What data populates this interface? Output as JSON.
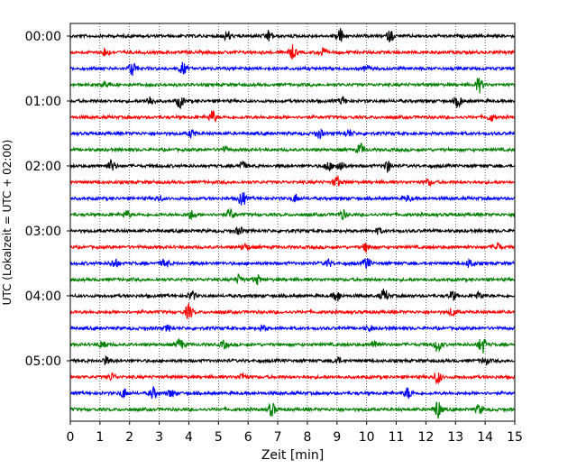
{
  "chart_data": {
    "type": "line",
    "title": "",
    "xlabel": "Zeit  [min]",
    "ylabel": "UTC (Lokalzeit = UTC + 02:00)",
    "xlim": [
      0,
      15
    ],
    "x_ticks": [
      0,
      1,
      2,
      3,
      4,
      5,
      6,
      7,
      8,
      9,
      10,
      11,
      12,
      13,
      14,
      15
    ],
    "x_tick_labels": [
      "0",
      "1",
      "2",
      "3",
      "4",
      "5",
      "6",
      "7",
      "8",
      "9",
      "10",
      "11",
      "12",
      "13",
      "14",
      "15"
    ],
    "y_tick_labels": [
      {
        "trace": 0,
        "label": "00:00"
      },
      {
        "trace": 4,
        "label": "01:00"
      },
      {
        "trace": 8,
        "label": "02:00"
      },
      {
        "trace": 12,
        "label": "03:00"
      },
      {
        "trace": 16,
        "label": "04:00"
      },
      {
        "trace": 20,
        "label": "05:00"
      }
    ],
    "grid": "vertical dotted",
    "trace_colors": [
      "#000000",
      "#ff0000",
      "#0000ff",
      "#008000"
    ],
    "traces": [
      {
        "start": "00:00",
        "events": [
          [
            5.3,
            0.5
          ],
          [
            6.7,
            0.6
          ],
          [
            9.1,
            0.8
          ],
          [
            10.8,
            0.6
          ]
        ]
      },
      {
        "start": "00:15",
        "events": [
          [
            1.2,
            0.5
          ],
          [
            7.5,
            0.7
          ],
          [
            8.5,
            0.5
          ]
        ]
      },
      {
        "start": "00:30",
        "events": [
          [
            2.1,
            0.8
          ],
          [
            3.8,
            0.6
          ],
          [
            10.0,
            0.3
          ]
        ]
      },
      {
        "start": "00:45",
        "events": [
          [
            1.2,
            0.3
          ],
          [
            13.8,
            0.8
          ]
        ]
      },
      {
        "start": "01:00",
        "events": [
          [
            2.7,
            0.5
          ],
          [
            3.7,
            0.7
          ],
          [
            9.2,
            0.4
          ],
          [
            13.1,
            0.6
          ]
        ]
      },
      {
        "start": "01:15",
        "events": [
          [
            4.8,
            0.7
          ],
          [
            14.2,
            0.4
          ]
        ]
      },
      {
        "start": "01:30",
        "events": [
          [
            4.1,
            0.4
          ],
          [
            8.4,
            0.5
          ],
          [
            9.4,
            0.4
          ]
        ]
      },
      {
        "start": "01:45",
        "events": [
          [
            5.2,
            0.3
          ],
          [
            9.8,
            0.6
          ]
        ]
      },
      {
        "start": "02:00",
        "events": [
          [
            1.4,
            0.6
          ],
          [
            5.8,
            0.5
          ],
          [
            8.7,
            0.5
          ],
          [
            9.1,
            0.7
          ],
          [
            10.7,
            0.6
          ]
        ]
      },
      {
        "start": "02:15",
        "events": [
          [
            9.0,
            0.6
          ],
          [
            12.1,
            0.3
          ]
        ]
      },
      {
        "start": "02:30",
        "events": [
          [
            3.0,
            0.3
          ],
          [
            5.8,
            0.8
          ],
          [
            7.6,
            0.4
          ],
          [
            11.4,
            0.3
          ]
        ]
      },
      {
        "start": "02:45",
        "events": [
          [
            1.9,
            0.4
          ],
          [
            4.1,
            0.5
          ],
          [
            5.4,
            0.6
          ],
          [
            9.2,
            0.5
          ]
        ]
      },
      {
        "start": "03:00",
        "events": [
          [
            5.7,
            0.4
          ],
          [
            10.4,
            0.3
          ]
        ]
      },
      {
        "start": "03:15",
        "events": [
          [
            5.9,
            0.4
          ],
          [
            10.0,
            0.5
          ],
          [
            14.4,
            0.5
          ]
        ]
      },
      {
        "start": "03:30",
        "events": [
          [
            1.5,
            0.5
          ],
          [
            3.2,
            0.5
          ],
          [
            8.7,
            0.4
          ],
          [
            10.0,
            0.6
          ],
          [
            13.5,
            0.5
          ]
        ]
      },
      {
        "start": "03:45",
        "events": [
          [
            5.7,
            0.5
          ],
          [
            6.3,
            0.5
          ]
        ]
      },
      {
        "start": "04:00",
        "events": [
          [
            4.1,
            0.5
          ],
          [
            9.0,
            0.6
          ],
          [
            10.6,
            0.7
          ],
          [
            12.9,
            0.5
          ],
          [
            13.8,
            0.4
          ]
        ]
      },
      {
        "start": "04:15",
        "events": [
          [
            4.0,
            0.8
          ],
          [
            12.9,
            0.4
          ]
        ]
      },
      {
        "start": "04:30",
        "events": [
          [
            3.3,
            0.3
          ],
          [
            6.5,
            0.3
          ],
          [
            10.1,
            0.3
          ]
        ]
      },
      {
        "start": "04:45",
        "events": [
          [
            1.1,
            0.5
          ],
          [
            3.7,
            0.6
          ],
          [
            5.2,
            0.4
          ],
          [
            10.3,
            0.5
          ],
          [
            12.4,
            0.8
          ],
          [
            13.9,
            0.9
          ]
        ]
      },
      {
        "start": "05:00",
        "events": [
          [
            1.2,
            0.4
          ],
          [
            9.0,
            0.4
          ],
          [
            14.0,
            0.4
          ]
        ]
      },
      {
        "start": "05:15",
        "events": [
          [
            1.4,
            0.4
          ],
          [
            5.8,
            0.4
          ],
          [
            12.4,
            0.7
          ]
        ]
      },
      {
        "start": "05:30",
        "events": [
          [
            1.8,
            0.5
          ],
          [
            2.8,
            0.6
          ],
          [
            3.4,
            0.4
          ],
          [
            11.4,
            0.6
          ]
        ]
      },
      {
        "start": "05:45",
        "events": [
          [
            6.8,
            0.7
          ],
          [
            12.4,
            1.0
          ],
          [
            13.8,
            0.5
          ]
        ]
      }
    ]
  }
}
